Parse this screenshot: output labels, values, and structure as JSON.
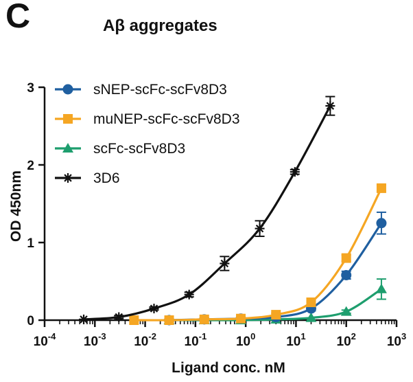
{
  "panel_letter": "C",
  "chart_data": {
    "type": "line",
    "title": "Aβ aggregates",
    "xlabel": "Ligand conc. nM",
    "ylabel": "OD 450nm",
    "xscale": "log",
    "xlim": [
      0.0001,
      1000
    ],
    "ylim": [
      0,
      3
    ],
    "x_ticks": [
      {
        "base": "10",
        "exp": "-4",
        "value": 0.0001
      },
      {
        "base": "10",
        "exp": "-3",
        "value": 0.001
      },
      {
        "base": "10",
        "exp": "-2",
        "value": 0.01
      },
      {
        "base": "10",
        "exp": "-1",
        "value": 0.1
      },
      {
        "base": "10",
        "exp": "0",
        "value": 1
      },
      {
        "base": "10",
        "exp": "1",
        "value": 10
      },
      {
        "base": "10",
        "exp": "2",
        "value": 100
      },
      {
        "base": "10",
        "exp": "3",
        "value": 1000
      }
    ],
    "y_ticks": [
      "0",
      "1",
      "2",
      "3"
    ],
    "legend_position": "top-left",
    "series": [
      {
        "name": "sNEP-scFc-scFv8D3",
        "color": "#1f5fa0",
        "marker": "circle",
        "x": [
          0.03,
          0.15,
          0.8,
          4,
          20,
          100,
          500
        ],
        "y": [
          0.0,
          0.01,
          0.02,
          0.04,
          0.15,
          0.58,
          1.25
        ],
        "err": [
          0.01,
          0.01,
          0.01,
          0.02,
          0.03,
          0.05,
          0.14
        ]
      },
      {
        "name": "muNEP-scFc-scFv8D3",
        "color": "#f5a623",
        "marker": "square",
        "x": [
          0.006,
          0.03,
          0.15,
          0.8,
          4,
          20,
          100,
          500
        ],
        "y": [
          0.0,
          0.0,
          0.01,
          0.02,
          0.07,
          0.23,
          0.8,
          1.7
        ],
        "err": [
          0.01,
          0.01,
          0.01,
          0.01,
          0.02,
          0.03,
          0.04,
          0.04
        ]
      },
      {
        "name": "scFc-scFv8D3",
        "color": "#1e9e6e",
        "marker": "triangle",
        "x": [
          0.03,
          0.15,
          0.8,
          4,
          20,
          100,
          500
        ],
        "y": [
          0.0,
          0.0,
          0.0,
          0.01,
          0.03,
          0.11,
          0.4
        ],
        "err": [
          0.01,
          0.01,
          0.01,
          0.01,
          0.01,
          0.02,
          0.13
        ]
      },
      {
        "name": "3D6",
        "color": "#111111",
        "marker": "asterisk",
        "x": [
          0.0006,
          0.003,
          0.015,
          0.075,
          0.38,
          1.9,
          9.5,
          48
        ],
        "y": [
          0.01,
          0.04,
          0.15,
          0.33,
          0.73,
          1.18,
          1.91,
          2.76
        ],
        "err": [
          0.01,
          0.02,
          0.02,
          0.03,
          0.09,
          0.1,
          0.03,
          0.12
        ]
      }
    ]
  }
}
